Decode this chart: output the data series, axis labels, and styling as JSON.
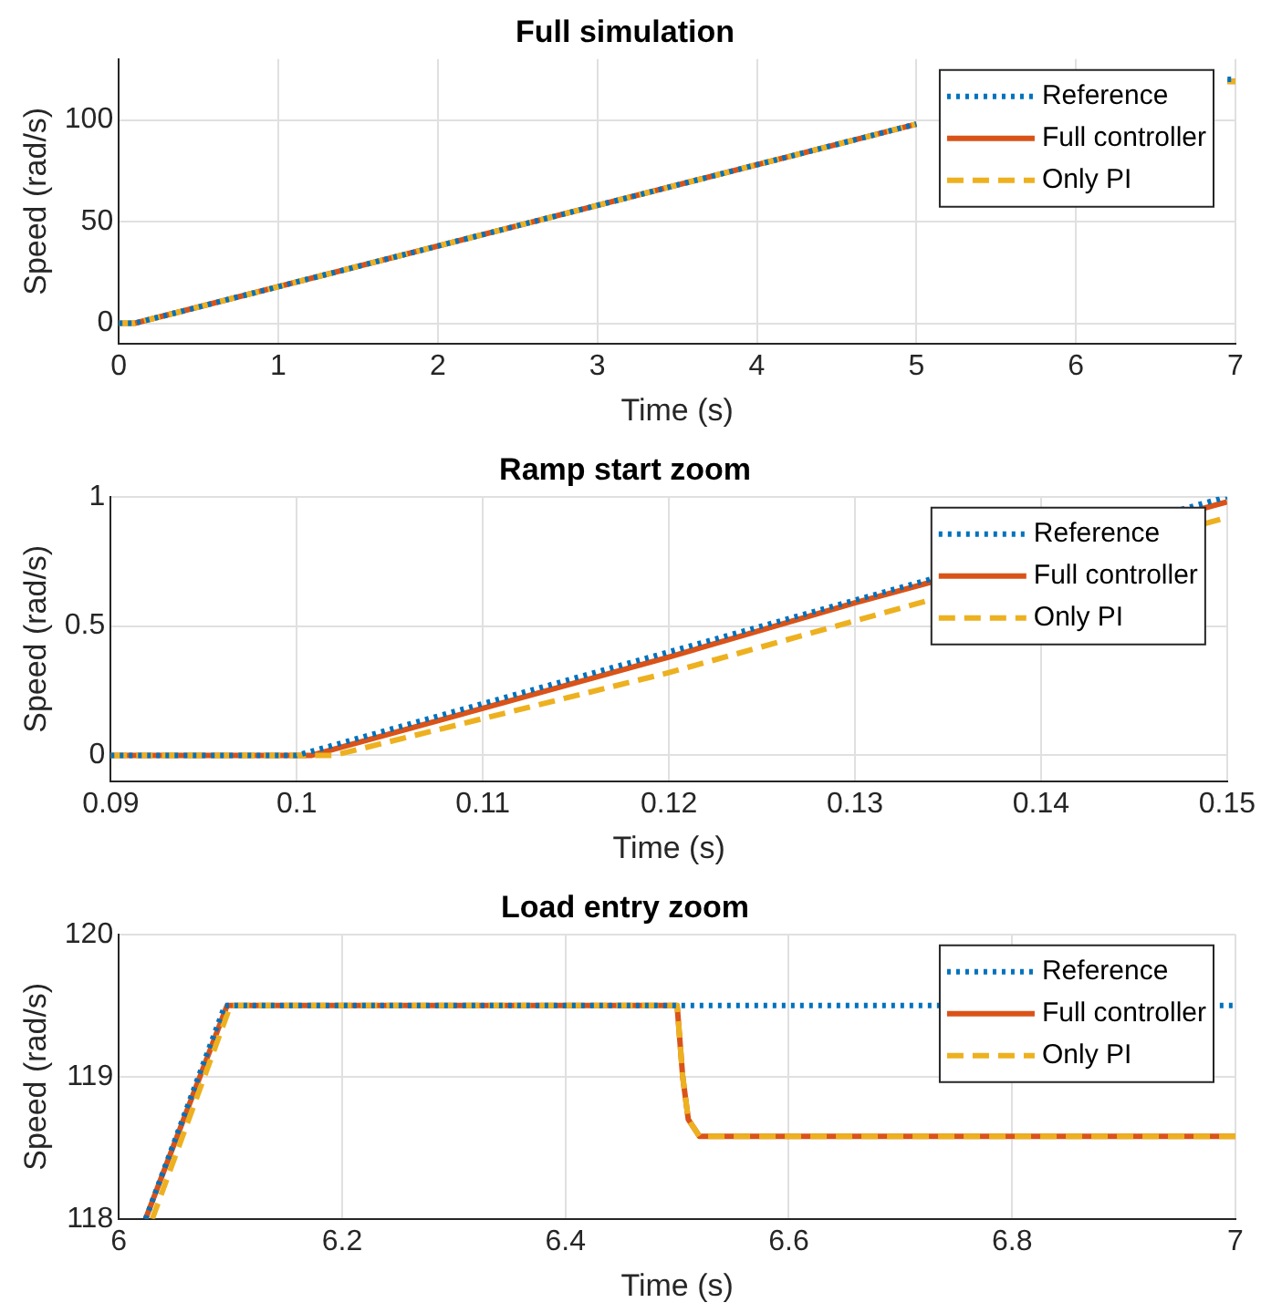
{
  "chart_data": [
    {
      "type": "line",
      "title": "Full simulation",
      "xlabel": "Time (s)",
      "ylabel": "Speed (rad/s)",
      "xlim": [
        0,
        7
      ],
      "ylim": [
        -10,
        130
      ],
      "xticks": [
        0,
        1,
        2,
        3,
        4,
        5,
        6,
        7
      ],
      "yticks": [
        0,
        50,
        100
      ],
      "grid": true,
      "legend": "top right",
      "series": [
        {
          "name": "Reference",
          "color": "#0072bd",
          "line_style": "dotted",
          "x": [
            0,
            0.1,
            5,
            6.1,
            6.95,
            7
          ],
          "values": [
            0,
            0,
            98,
            null,
            120,
            120
          ]
        },
        {
          "name": "Full controller",
          "color": "#d95319",
          "line_style": "solid",
          "x": [
            0,
            0.1,
            5,
            6.1,
            6.5,
            6.95,
            7
          ],
          "values": [
            0,
            0,
            98,
            null,
            null,
            119,
            119
          ]
        },
        {
          "name": "Only PI",
          "color": "#edb120",
          "line_style": "dashed",
          "x": [
            0,
            0.1,
            5,
            6.1,
            6.5,
            6.95,
            7
          ],
          "values": [
            0,
            0,
            98,
            null,
            null,
            119,
            119
          ]
        }
      ]
    },
    {
      "type": "line",
      "title": "Ramp start zoom",
      "xlabel": "Time (s)",
      "ylabel": "Speed (rad/s)",
      "xlim": [
        0.09,
        0.15
      ],
      "ylim": [
        -0.1,
        1
      ],
      "xticks": [
        0.09,
        0.1,
        0.11,
        0.12,
        0.13,
        0.14,
        0.15
      ],
      "yticks": [
        0,
        0.5,
        1
      ],
      "grid": true,
      "legend": "top right",
      "series": [
        {
          "name": "Reference",
          "color": "#0072bd",
          "line_style": "dotted",
          "x": [
            0.09,
            0.1,
            0.15
          ],
          "values": [
            0,
            0,
            1
          ]
        },
        {
          "name": "Full controller",
          "color": "#d95319",
          "line_style": "solid",
          "x": [
            0.09,
            0.1008,
            0.12,
            0.13,
            0.15
          ],
          "values": [
            0,
            0,
            0.38,
            0.59,
            0.98
          ]
        },
        {
          "name": "Only PI",
          "color": "#edb120",
          "line_style": "dashed",
          "x": [
            0.09,
            0.102,
            0.12,
            0.13,
            0.15
          ],
          "values": [
            0,
            0,
            0.32,
            0.52,
            0.92
          ]
        }
      ]
    },
    {
      "type": "line",
      "title": "Load entry zoom",
      "xlabel": "Time (s)",
      "ylabel": "Speed (rad/s)",
      "xlim": [
        6,
        7
      ],
      "ylim": [
        118,
        120
      ],
      "xticks": [
        6,
        6.2,
        6.4,
        6.6,
        6.8,
        7
      ],
      "yticks": [
        118,
        119,
        120
      ],
      "grid": true,
      "legend": "top right",
      "series": [
        {
          "name": "Reference",
          "color": "#0072bd",
          "line_style": "dotted",
          "x": [
            6.024,
            6.095,
            7
          ],
          "values": [
            118,
            119.5,
            119.5
          ]
        },
        {
          "name": "Full controller",
          "color": "#d95319",
          "line_style": "solid",
          "x": [
            6.024,
            6.097,
            6.5,
            6.505,
            6.51,
            6.52,
            7
          ],
          "values": [
            118,
            119.5,
            119.5,
            119.0,
            118.7,
            118.58,
            118.58
          ]
        },
        {
          "name": "Only PI",
          "color": "#edb120",
          "line_style": "dashed",
          "x": [
            6.03,
            6.1,
            6.5,
            6.505,
            6.51,
            6.52,
            7
          ],
          "values": [
            118,
            119.5,
            119.5,
            119.0,
            118.7,
            118.58,
            118.58
          ]
        }
      ]
    }
  ]
}
